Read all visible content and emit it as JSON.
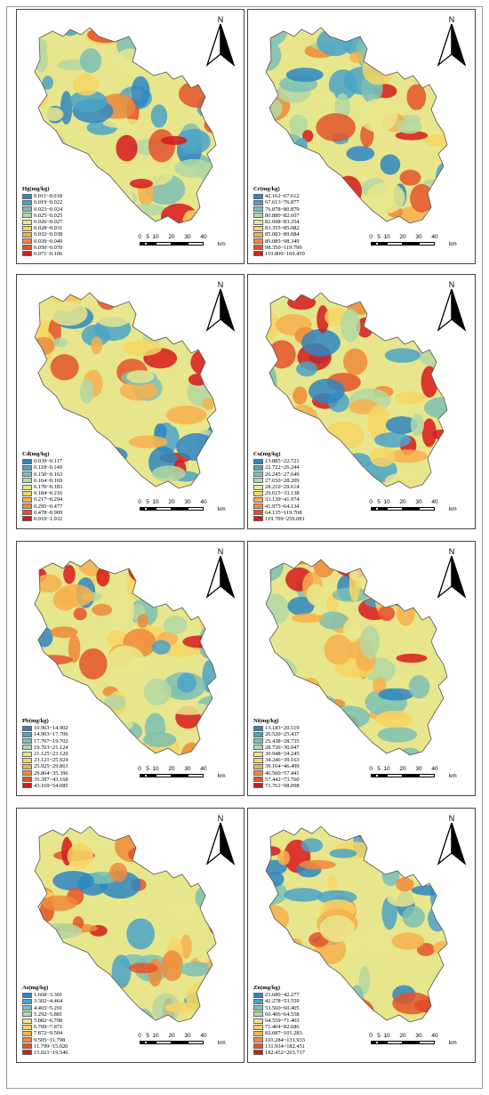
{
  "north_label": "N",
  "scale_labels": [
    "0",
    "5",
    "10",
    "20",
    "30",
    "40"
  ],
  "scale_unit": "km",
  "palette": [
    "#2e86c1",
    "#4aa3c8",
    "#7cbfb4",
    "#b3d7a3",
    "#e8e68c",
    "#f7d564",
    "#f6b04c",
    "#ef8a3a",
    "#e3542c",
    "#d7191c"
  ],
  "panels": [
    {
      "title": "Hg(mg/kg)",
      "ranges": [
        "0.011~0.018",
        "0.019~0.022",
        "0.023~0.024",
        "0.025~0.025",
        "0.026~0.027",
        "0.028~0.031",
        "0.032~0.038",
        "0.039~0.049",
        "0.050~0.070",
        "0.071~0.106"
      ]
    },
    {
      "title": "Cr(mg/kg)",
      "ranges": [
        "42.162~67.612",
        "67.613~76.877",
        "76.878~80.879",
        "80.880~82.607",
        "82.608~83.354",
        "83.355~85.082",
        "85.083~89.084",
        "89.085~98.349",
        "98.350~119.799",
        "119.800~169.459"
      ]
    },
    {
      "title": "Cd(mg/kg)",
      "ranges": [
        "0.039~0.117",
        "0.118~0.149",
        "0.150~0.163",
        "0.164~0.169",
        "0.170~0.183",
        "0.184~0.216",
        "0.217~0.294",
        "0.295~0.477",
        "0.478~0.909",
        "0.910~1.932"
      ]
    },
    {
      "title": "Cu(mg/kg)",
      "ranges": [
        "13.885~22.721",
        "22.722~26.244",
        "26.245~27.649",
        "27.650~28.209",
        "28.210~29.614",
        "29.615~33.138",
        "33.139~41.974",
        "41.975~64.134",
        "64.135~119.708",
        "119.709~259.081"
      ]
    },
    {
      "title": "Pb(mg/kg)",
      "ranges": [
        "10.963~14.902",
        "14.903~17.706",
        "17.707~19.702",
        "19.703~21.124",
        "21.125~23.120",
        "23.121~25.924",
        "25.925~29.863",
        "29.864~35.396",
        "35.397~43.168",
        "43.169~54.085"
      ]
    },
    {
      "title": "Ni(mg/kg)",
      "ranges": [
        "13.183~20.519",
        "20.520~25.437",
        "25.438~28.735",
        "28.736~30.947",
        "30.948~34.245",
        "34.246~39.163",
        "39.164~46.499",
        "46.500~57.441",
        "57.442~73.760",
        "73.761~98.098"
      ]
    },
    {
      "title": "As(mg/kg)",
      "ranges": [
        "1.668~3.301",
        "3.302~4.464",
        "4.465~5.291",
        "5.292~5.881",
        "5.882~6.708",
        "6.709~7.871",
        "7.872~9.504",
        "9.505~11.798",
        "11.799~15.020",
        "15.021~19.546"
      ]
    },
    {
      "title": "Zn(mg/kg)",
      "ranges": [
        "23.680~42.277",
        "42.278~53.559",
        "53.560~60.405",
        "60.406~64.558",
        "64.559~71.403",
        "71.404~82.686",
        "82.687~101.283",
        "101.284~131.933",
        "131.934~182.451",
        "182.452~265.717"
      ]
    }
  ]
}
